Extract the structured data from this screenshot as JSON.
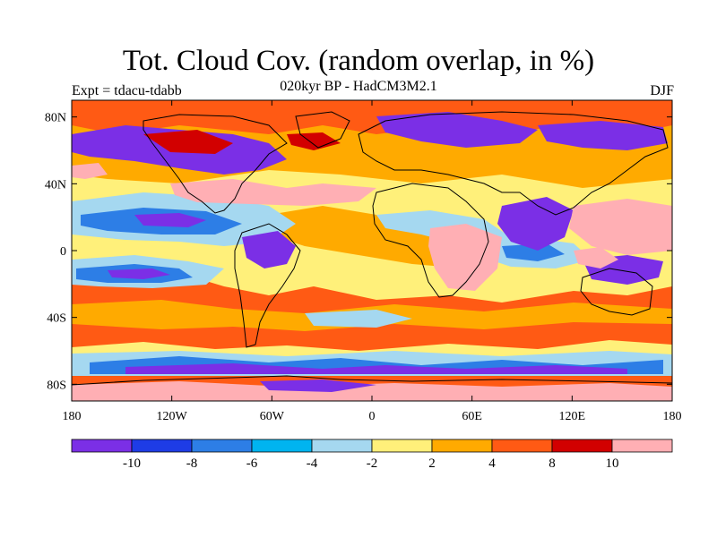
{
  "header": {
    "title": "Tot. Cloud Cov. (random overlap, in %)",
    "subtitle": "020kyr BP - HadCM3M2.1",
    "experiment": "Expt = tdacu-tdabb",
    "season": "DJF"
  },
  "map": {
    "lat_ticks": [
      {
        "label": "80N",
        "value": 80
      },
      {
        "label": "40N",
        "value": 40
      },
      {
        "label": "0",
        "value": 0
      },
      {
        "label": "40S",
        "value": -40
      },
      {
        "label": "80S",
        "value": -80
      }
    ],
    "lon_ticks": [
      {
        "label": "180",
        "value": -180
      },
      {
        "label": "120W",
        "value": -120
      },
      {
        "label": "60W",
        "value": -60
      },
      {
        "label": "0",
        "value": 0
      },
      {
        "label": "60E",
        "value": 60
      },
      {
        "label": "120E",
        "value": 120
      },
      {
        "label": "180",
        "value": 180
      }
    ],
    "lat_range": [
      -90,
      90
    ],
    "lon_range": [
      -180,
      180
    ]
  },
  "colorbar": {
    "colors": [
      "#7b2fe6",
      "#1e3ce6",
      "#2d7ee6",
      "#00b4f0",
      "#a5d8f0",
      "#fff07a",
      "#ffaa00",
      "#ff5a14",
      "#d20000",
      "#ffafb4"
    ],
    "labels": [
      "-10",
      "-8",
      "-6",
      "-4",
      "-2",
      "2",
      "4",
      "8",
      "10"
    ]
  },
  "palette": {
    "deep_purple": "#7b2fe6",
    "blue": "#2d7ee6",
    "cyan": "#00b4f0",
    "light_blue": "#a5d8f0",
    "yellow": "#fff07a",
    "orange": "#ffaa00",
    "red_orange": "#ff5a14",
    "red": "#d20000",
    "pink": "#ffafb4"
  }
}
